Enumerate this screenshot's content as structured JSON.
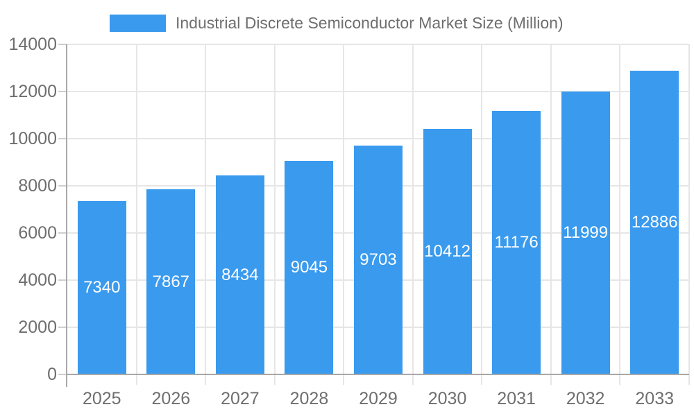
{
  "legend": {
    "label": "Industrial Discrete Semiconductor Market Size (Million)",
    "swatch_color": "#399AEE"
  },
  "chart_data": {
    "type": "bar",
    "title": "Industrial Discrete Semiconductor Market Size (Million)",
    "categories": [
      "2025",
      "2026",
      "2027",
      "2028",
      "2029",
      "2030",
      "2031",
      "2032",
      "2033"
    ],
    "series": [
      {
        "name": "Industrial Discrete Semiconductor Market Size (Million)",
        "values": [
          7340,
          7867,
          8434,
          9045,
          9703,
          10412,
          11176,
          11999,
          12886
        ]
      }
    ],
    "value_labels_shown": true,
    "xlabel": "",
    "ylabel": "",
    "ylim": [
      0,
      14000
    ],
    "yticks": [
      0,
      2000,
      4000,
      6000,
      8000,
      10000,
      12000,
      14000
    ],
    "grid": true,
    "legend_position": "top",
    "colors": {
      "bar": "#399AEE",
      "gridline": "#e6e6e6",
      "axis_line": "#a8a8a8",
      "tick_mark": "#cfcfcf",
      "axis_label_text": "#6e6e6e",
      "value_label_text": "#ffffff",
      "background": "#ffffff"
    }
  }
}
